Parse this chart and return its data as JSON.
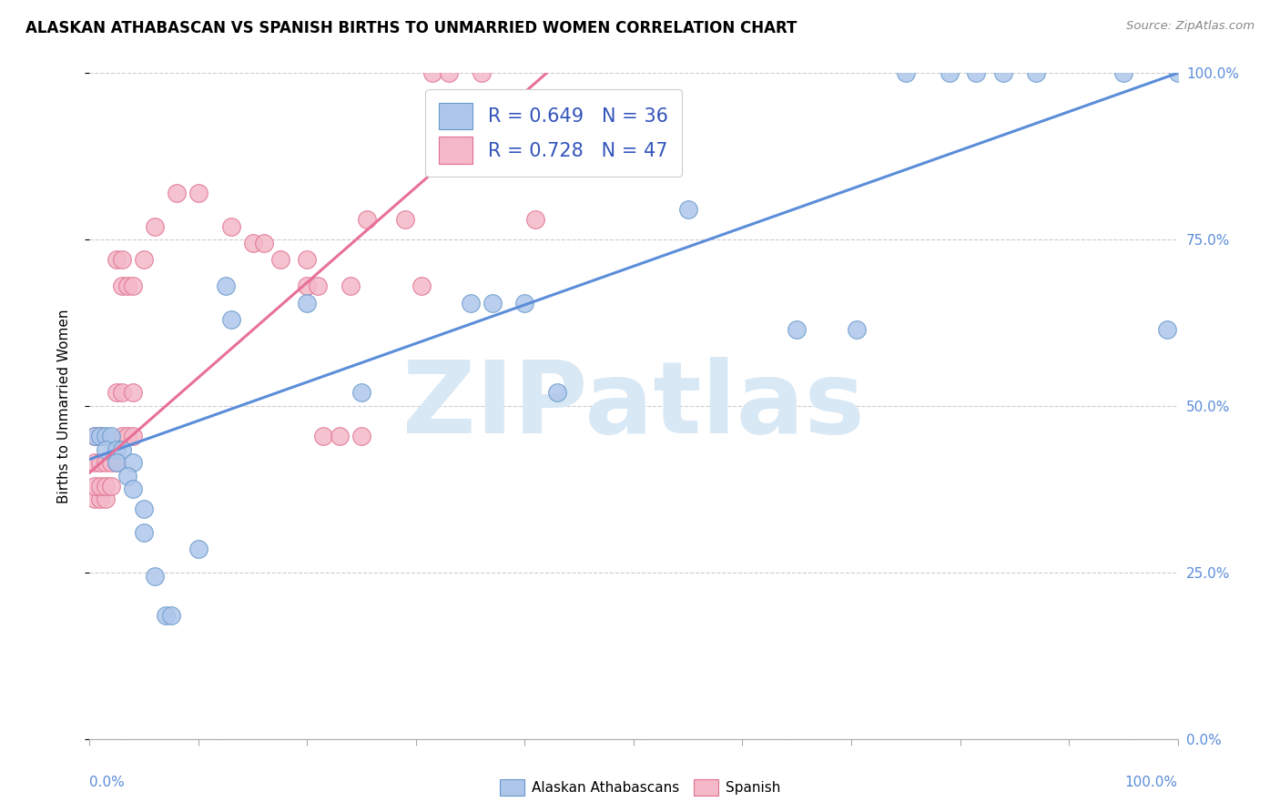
{
  "title": "ALASKAN ATHABASCAN VS SPANISH BIRTHS TO UNMARRIED WOMEN CORRELATION CHART",
  "source": "Source: ZipAtlas.com",
  "ylabel": "Births to Unmarried Women",
  "xlim": [
    0,
    1
  ],
  "ylim": [
    0,
    1
  ],
  "yticks": [
    0.0,
    0.25,
    0.5,
    0.75,
    1.0
  ],
  "ytick_labels": [
    "0.0%",
    "25.0%",
    "50.0%",
    "75.0%",
    "100.0%"
  ],
  "xticks": [
    0,
    0.1,
    0.2,
    0.3,
    0.4,
    0.5,
    0.6,
    0.7,
    0.8,
    0.9,
    1.0
  ],
  "xtick_labels_left": "0.0%",
  "xtick_labels_right": "100.0%",
  "blue_fill": "#aec6ea",
  "blue_edge": "#6699cc",
  "pink_fill": "#f4b8c8",
  "pink_edge": "#e07090",
  "blue_line_color": "#5b8dd9",
  "pink_line_color": "#e87098",
  "legend_text_color": "#3355bb",
  "watermark_color": "#d8e8f5",
  "blue_scatter": [
    [
      0.005,
      0.455
    ],
    [
      0.01,
      0.455
    ],
    [
      0.015,
      0.455
    ],
    [
      0.02,
      0.455
    ],
    [
      0.015,
      0.435
    ],
    [
      0.025,
      0.435
    ],
    [
      0.03,
      0.435
    ],
    [
      0.025,
      0.415
    ],
    [
      0.04,
      0.415
    ],
    [
      0.035,
      0.395
    ],
    [
      0.04,
      0.375
    ],
    [
      0.05,
      0.345
    ],
    [
      0.05,
      0.31
    ],
    [
      0.06,
      0.245
    ],
    [
      0.07,
      0.185
    ],
    [
      0.075,
      0.185
    ],
    [
      0.1,
      0.285
    ],
    [
      0.125,
      0.68
    ],
    [
      0.13,
      0.63
    ],
    [
      0.2,
      0.655
    ],
    [
      0.25,
      0.52
    ],
    [
      0.35,
      0.655
    ],
    [
      0.37,
      0.655
    ],
    [
      0.4,
      0.655
    ],
    [
      0.43,
      0.52
    ],
    [
      0.55,
      0.795
    ],
    [
      0.65,
      0.615
    ],
    [
      0.705,
      0.615
    ],
    [
      0.75,
      1.0
    ],
    [
      0.79,
      1.0
    ],
    [
      0.815,
      1.0
    ],
    [
      0.84,
      1.0
    ],
    [
      0.87,
      1.0
    ],
    [
      0.95,
      1.0
    ],
    [
      0.99,
      0.615
    ],
    [
      1.0,
      1.0
    ]
  ],
  "pink_scatter": [
    [
      0.005,
      0.36
    ],
    [
      0.01,
      0.36
    ],
    [
      0.015,
      0.36
    ],
    [
      0.005,
      0.38
    ],
    [
      0.01,
      0.38
    ],
    [
      0.015,
      0.38
    ],
    [
      0.02,
      0.38
    ],
    [
      0.005,
      0.415
    ],
    [
      0.01,
      0.415
    ],
    [
      0.015,
      0.415
    ],
    [
      0.02,
      0.415
    ],
    [
      0.025,
      0.415
    ],
    [
      0.005,
      0.455
    ],
    [
      0.01,
      0.455
    ],
    [
      0.03,
      0.455
    ],
    [
      0.035,
      0.455
    ],
    [
      0.04,
      0.455
    ],
    [
      0.025,
      0.52
    ],
    [
      0.03,
      0.52
    ],
    [
      0.04,
      0.52
    ],
    [
      0.03,
      0.68
    ],
    [
      0.035,
      0.68
    ],
    [
      0.04,
      0.68
    ],
    [
      0.025,
      0.72
    ],
    [
      0.03,
      0.72
    ],
    [
      0.05,
      0.72
    ],
    [
      0.06,
      0.77
    ],
    [
      0.08,
      0.82
    ],
    [
      0.1,
      0.82
    ],
    [
      0.13,
      0.77
    ],
    [
      0.15,
      0.745
    ],
    [
      0.16,
      0.745
    ],
    [
      0.175,
      0.72
    ],
    [
      0.2,
      0.72
    ],
    [
      0.2,
      0.68
    ],
    [
      0.21,
      0.68
    ],
    [
      0.24,
      0.68
    ],
    [
      0.215,
      0.455
    ],
    [
      0.23,
      0.455
    ],
    [
      0.25,
      0.455
    ],
    [
      0.255,
      0.78
    ],
    [
      0.29,
      0.78
    ],
    [
      0.305,
      0.68
    ],
    [
      0.315,
      1.0
    ],
    [
      0.33,
      1.0
    ],
    [
      0.36,
      1.0
    ],
    [
      0.41,
      0.78
    ]
  ],
  "blue_line_x": [
    0.0,
    1.0
  ],
  "blue_line_y": [
    0.42,
    1.0
  ],
  "pink_line_x": [
    0.0,
    0.42
  ],
  "pink_line_y": [
    0.4,
    1.0
  ]
}
